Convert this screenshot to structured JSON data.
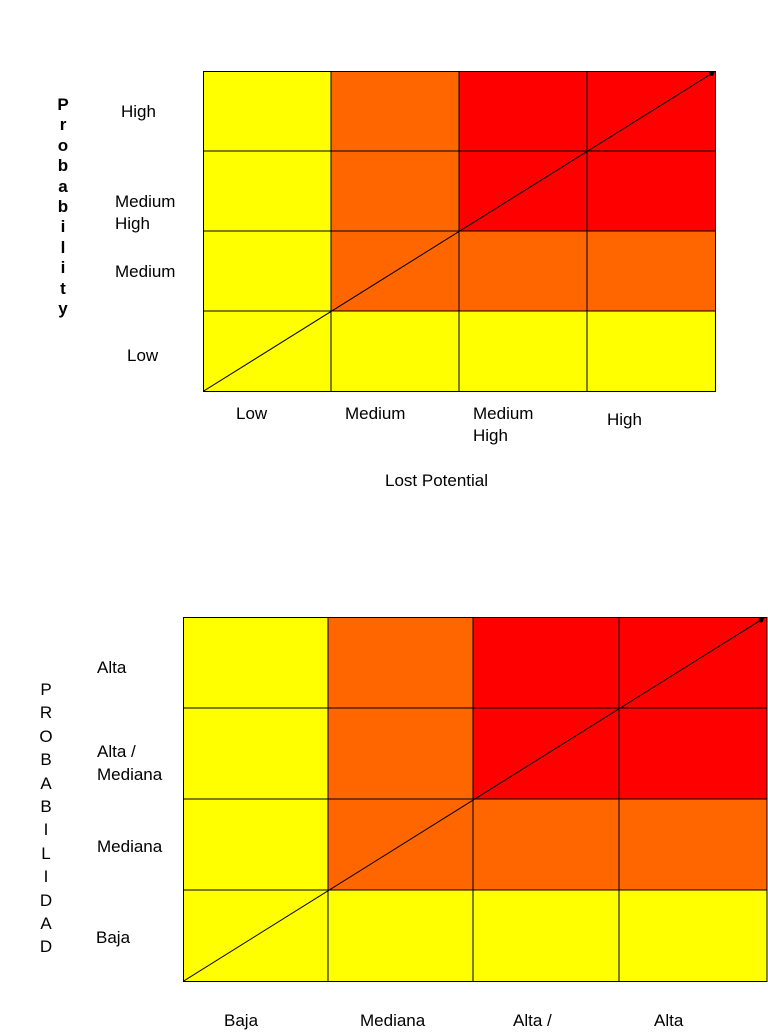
{
  "colors": {
    "yellow": "#ffff00",
    "orange": "#ff6600",
    "red": "#ff0000",
    "line": "#000000"
  },
  "matrix_en": {
    "y_title": "P\nr\no\nb\na\nb\ni\nl\ni\nt\ny",
    "y_labels": [
      "High",
      "Medium\nHigh",
      "Medium",
      "Low"
    ],
    "x_labels": [
      "Low",
      "Medium",
      "Medium\nHigh",
      "High"
    ],
    "x_title": "Lost Potential",
    "cells": [
      [
        "yellow",
        "orange",
        "red",
        "red"
      ],
      [
        "yellow",
        "orange",
        "red",
        "red"
      ],
      [
        "yellow",
        "orange",
        "orange",
        "orange"
      ],
      [
        "yellow",
        "yellow",
        "yellow",
        "yellow"
      ]
    ]
  },
  "matrix_es": {
    "y_title": "P\nR\nO\nB\nA\nB\nI\nL\nI\nD\nA\nD",
    "y_labels": [
      "Alta",
      "Alta /\nMediana",
      "Mediana",
      "Baja"
    ],
    "x_labels": [
      "Baja",
      "Mediana",
      "Alta /",
      "Alta"
    ],
    "cells": [
      [
        "yellow",
        "orange",
        "red",
        "red"
      ],
      [
        "yellow",
        "orange",
        "red",
        "red"
      ],
      [
        "yellow",
        "orange",
        "orange",
        "orange"
      ],
      [
        "yellow",
        "yellow",
        "yellow",
        "yellow"
      ]
    ]
  }
}
